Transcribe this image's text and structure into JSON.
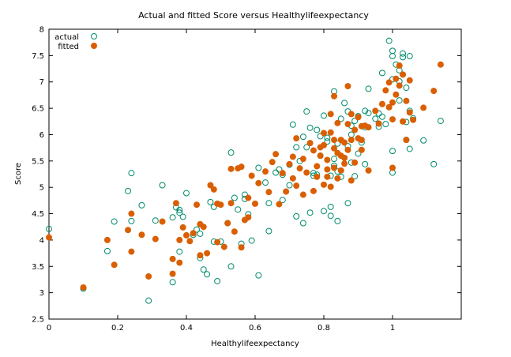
{
  "chart_data": {
    "type": "scatter",
    "title": "Actual and fitted Score versus Healthylifeexpectancy",
    "xlabel": "Healthylifeexpectancy",
    "ylabel": "Score",
    "xlim": [
      0,
      1.2
    ],
    "ylim": [
      2.5,
      8
    ],
    "x_ticks": [
      0,
      0.2,
      0.4,
      0.6,
      0.8,
      1
    ],
    "x_tick_labels": [
      "0",
      "0.2",
      "0.4",
      "0.6",
      "0.8",
      "1"
    ],
    "y_ticks": [
      2.5,
      3,
      3.5,
      4,
      4.5,
      5,
      5.5,
      6,
      6.5,
      7,
      7.5,
      8
    ],
    "y_tick_labels": [
      "2.5",
      "3",
      "3.5",
      "4",
      "4.5",
      "5",
      "5.5",
      "6",
      "6.5",
      "7",
      "7.5",
      "8"
    ],
    "legend_position": "top-left",
    "colors": {
      "actual": "#008b6b",
      "fitted": "#d95f02"
    },
    "series": [
      {
        "name": "actual",
        "marker": "open-circle",
        "points": [
          [
            0.0,
            4.21
          ],
          [
            0.1,
            3.08
          ],
          [
            0.17,
            3.79
          ],
          [
            0.19,
            4.35
          ],
          [
            0.23,
            4.93
          ],
          [
            0.24,
            4.36
          ],
          [
            0.24,
            5.27
          ],
          [
            0.27,
            4.66
          ],
          [
            0.29,
            2.85
          ],
          [
            0.31,
            4.37
          ],
          [
            0.33,
            5.04
          ],
          [
            0.36,
            4.43
          ],
          [
            0.37,
            4.62
          ],
          [
            0.36,
            3.2
          ],
          [
            0.38,
            3.78
          ],
          [
            0.38,
            4.52
          ],
          [
            0.38,
            4.57
          ],
          [
            0.39,
            4.44
          ],
          [
            0.4,
            4.89
          ],
          [
            0.42,
            4.1
          ],
          [
            0.43,
            4.2
          ],
          [
            0.44,
            4.12
          ],
          [
            0.44,
            3.66
          ],
          [
            0.45,
            3.44
          ],
          [
            0.46,
            3.35
          ],
          [
            0.47,
            4.72
          ],
          [
            0.48,
            4.63
          ],
          [
            0.48,
            3.97
          ],
          [
            0.49,
            3.22
          ],
          [
            0.5,
            3.97
          ],
          [
            0.52,
            4.32
          ],
          [
            0.53,
            5.66
          ],
          [
            0.53,
            3.5
          ],
          [
            0.54,
            4.8
          ],
          [
            0.55,
            4.58
          ],
          [
            0.56,
            3.93
          ],
          [
            0.57,
            4.86
          ],
          [
            0.57,
            4.78
          ],
          [
            0.58,
            4.49
          ],
          [
            0.59,
            3.99
          ],
          [
            0.61,
            5.37
          ],
          [
            0.61,
            3.33
          ],
          [
            0.63,
            5.09
          ],
          [
            0.64,
            4.7
          ],
          [
            0.64,
            4.17
          ],
          [
            0.66,
            5.28
          ],
          [
            0.67,
            5.34
          ],
          [
            0.68,
            4.76
          ],
          [
            0.7,
            5.04
          ],
          [
            0.71,
            6.19
          ],
          [
            0.72,
            4.45
          ],
          [
            0.73,
            5.5
          ],
          [
            0.74,
            4.32
          ],
          [
            0.75,
            6.44
          ],
          [
            0.76,
            6.13
          ],
          [
            0.76,
            4.52
          ],
          [
            0.77,
            5.27
          ],
          [
            0.78,
            6.09
          ],
          [
            0.78,
            5.24
          ],
          [
            0.79,
            5.6
          ],
          [
            0.8,
            4.55
          ],
          [
            0.81,
            5.94
          ],
          [
            0.82,
            4.63
          ],
          [
            0.82,
            4.46
          ],
          [
            0.82,
            5.22
          ],
          [
            0.83,
            6.82
          ],
          [
            0.83,
            5.41
          ],
          [
            0.84,
            4.36
          ],
          [
            0.84,
            5.83
          ],
          [
            0.85,
            6.3
          ],
          [
            0.85,
            5.2
          ],
          [
            0.86,
            6.6
          ],
          [
            0.87,
            5.78
          ],
          [
            0.87,
            4.7
          ],
          [
            0.88,
            6.17
          ],
          [
            0.88,
            5.47
          ],
          [
            0.89,
            6.26
          ],
          [
            0.89,
            5.21
          ],
          [
            0.9,
            6.35
          ],
          [
            0.91,
            5.85
          ],
          [
            0.92,
            6.45
          ],
          [
            0.92,
            5.44
          ],
          [
            0.93,
            6.87
          ],
          [
            0.95,
            6.3
          ],
          [
            0.96,
            6.15
          ],
          [
            0.97,
            7.17
          ],
          [
            0.98,
            6.2
          ],
          [
            0.99,
            7.78
          ],
          [
            1.0,
            7.59
          ],
          [
            1.0,
            7.49
          ],
          [
            1.0,
            7.05
          ],
          [
            1.0,
            5.69
          ],
          [
            1.0,
            5.28
          ],
          [
            1.01,
            7.33
          ],
          [
            1.02,
            7.22
          ],
          [
            1.02,
            7.01
          ],
          [
            1.03,
            7.54
          ],
          [
            1.03,
            7.47
          ],
          [
            1.04,
            6.89
          ],
          [
            1.04,
            6.24
          ],
          [
            1.04,
            5.9
          ],
          [
            1.05,
            7.49
          ],
          [
            1.05,
            6.45
          ],
          [
            1.05,
            5.73
          ],
          [
            1.06,
            6.31
          ],
          [
            1.09,
            5.89
          ],
          [
            1.12,
            5.44
          ],
          [
            1.14,
            6.26
          ],
          [
            0.97,
            6.34
          ],
          [
            0.92,
            6.14
          ],
          [
            0.8,
            6.36
          ],
          [
            0.79,
            5.97
          ],
          [
            0.87,
            6.44
          ],
          [
            0.68,
            5.24
          ],
          [
            0.72,
            5.76
          ],
          [
            0.93,
            6.41
          ],
          [
            1.02,
            6.65
          ],
          [
            0.96,
            6.4
          ],
          [
            0.84,
            5.3
          ],
          [
            0.77,
            5.22
          ],
          [
            0.88,
            6.0
          ],
          [
            0.74,
            5.96
          ],
          [
            0.81,
            5.87
          ],
          [
            0.83,
            5.54
          ],
          [
            0.7,
            5.43
          ],
          [
            0.75,
            5.76
          ],
          [
            0.86,
            5.56
          ],
          [
            0.9,
            5.64
          ]
        ]
      },
      {
        "name": "fitted",
        "marker": "filled-circle",
        "points": [
          [
            0.0,
            4.05
          ],
          [
            0.1,
            3.1
          ],
          [
            0.17,
            4.0
          ],
          [
            0.19,
            3.53
          ],
          [
            0.23,
            4.19
          ],
          [
            0.24,
            4.5
          ],
          [
            0.24,
            3.78
          ],
          [
            0.27,
            4.1
          ],
          [
            0.29,
            3.31
          ],
          [
            0.31,
            4.02
          ],
          [
            0.33,
            4.35
          ],
          [
            0.36,
            3.64
          ],
          [
            0.36,
            3.36
          ],
          [
            0.37,
            4.7
          ],
          [
            0.38,
            3.57
          ],
          [
            0.38,
            4.0
          ],
          [
            0.39,
            4.24
          ],
          [
            0.4,
            4.09
          ],
          [
            0.41,
            3.98
          ],
          [
            0.42,
            4.13
          ],
          [
            0.43,
            4.67
          ],
          [
            0.44,
            4.3
          ],
          [
            0.44,
            3.71
          ],
          [
            0.45,
            4.25
          ],
          [
            0.46,
            3.75
          ],
          [
            0.47,
            5.04
          ],
          [
            0.48,
            4.96
          ],
          [
            0.49,
            4.69
          ],
          [
            0.49,
            3.96
          ],
          [
            0.5,
            4.67
          ],
          [
            0.51,
            3.87
          ],
          [
            0.52,
            4.32
          ],
          [
            0.53,
            4.7
          ],
          [
            0.53,
            5.35
          ],
          [
            0.54,
            4.16
          ],
          [
            0.55,
            5.36
          ],
          [
            0.56,
            5.39
          ],
          [
            0.56,
            3.86
          ],
          [
            0.57,
            4.38
          ],
          [
            0.58,
            4.8
          ],
          [
            0.58,
            4.43
          ],
          [
            0.59,
            5.22
          ],
          [
            0.6,
            4.69
          ],
          [
            0.61,
            5.08
          ],
          [
            0.63,
            5.3
          ],
          [
            0.64,
            4.91
          ],
          [
            0.65,
            5.48
          ],
          [
            0.66,
            5.63
          ],
          [
            0.67,
            4.68
          ],
          [
            0.68,
            5.27
          ],
          [
            0.69,
            4.92
          ],
          [
            0.7,
            5.44
          ],
          [
            0.71,
            5.17
          ],
          [
            0.72,
            5.93
          ],
          [
            0.73,
            5.36
          ],
          [
            0.74,
            4.86
          ],
          [
            0.75,
            5.28
          ],
          [
            0.76,
            5.84
          ],
          [
            0.77,
            4.93
          ],
          [
            0.78,
            5.4
          ],
          [
            0.78,
            5.2
          ],
          [
            0.79,
            5.76
          ],
          [
            0.8,
            5.05
          ],
          [
            0.8,
            5.8
          ],
          [
            0.81,
            5.52
          ],
          [
            0.82,
            5.01
          ],
          [
            0.82,
            6.04
          ],
          [
            0.83,
            5.37
          ],
          [
            0.83,
            6.73
          ],
          [
            0.84,
            5.65
          ],
          [
            0.84,
            5.17
          ],
          [
            0.85,
            5.9
          ],
          [
            0.85,
            5.32
          ],
          [
            0.86,
            5.56
          ],
          [
            0.87,
            6.2
          ],
          [
            0.87,
            5.71
          ],
          [
            0.88,
            5.9
          ],
          [
            0.88,
            6.39
          ],
          [
            0.89,
            5.47
          ],
          [
            0.9,
            6.33
          ],
          [
            0.9,
            5.93
          ],
          [
            0.91,
            6.16
          ],
          [
            0.91,
            5.71
          ],
          [
            0.92,
            6.17
          ],
          [
            0.93,
            5.32
          ],
          [
            0.95,
            6.45
          ],
          [
            0.96,
            6.21
          ],
          [
            0.97,
            6.58
          ],
          [
            0.98,
            6.84
          ],
          [
            0.99,
            6.52
          ],
          [
            0.99,
            6.99
          ],
          [
            1.0,
            6.61
          ],
          [
            1.0,
            6.29
          ],
          [
            1.0,
            5.37
          ],
          [
            1.01,
            6.76
          ],
          [
            1.01,
            7.06
          ],
          [
            1.02,
            6.93
          ],
          [
            1.02,
            7.31
          ],
          [
            1.03,
            7.14
          ],
          [
            1.03,
            6.25
          ],
          [
            1.04,
            6.64
          ],
          [
            1.04,
            5.9
          ],
          [
            1.05,
            6.42
          ],
          [
            1.05,
            7.03
          ],
          [
            1.06,
            6.28
          ],
          [
            1.09,
            6.51
          ],
          [
            1.12,
            6.83
          ],
          [
            1.14,
            7.33
          ],
          [
            0.87,
            6.92
          ],
          [
            0.82,
            6.39
          ],
          [
            0.8,
            6.03
          ],
          [
            0.84,
            6.22
          ],
          [
            0.79,
            5.6
          ],
          [
            0.81,
            5.2
          ],
          [
            0.83,
            5.9
          ],
          [
            0.86,
            5.45
          ],
          [
            0.88,
            5.13
          ],
          [
            0.85,
            5.6
          ],
          [
            0.77,
            5.7
          ],
          [
            0.74,
            5.54
          ],
          [
            0.71,
            5.58
          ],
          [
            0.72,
            5.03
          ],
          [
            0.89,
            6.09
          ],
          [
            0.91,
            5.9
          ],
          [
            0.93,
            6.14
          ],
          [
            0.81,
            5.34
          ],
          [
            0.83,
            5.74
          ],
          [
            0.86,
            5.85
          ]
        ]
      }
    ]
  }
}
